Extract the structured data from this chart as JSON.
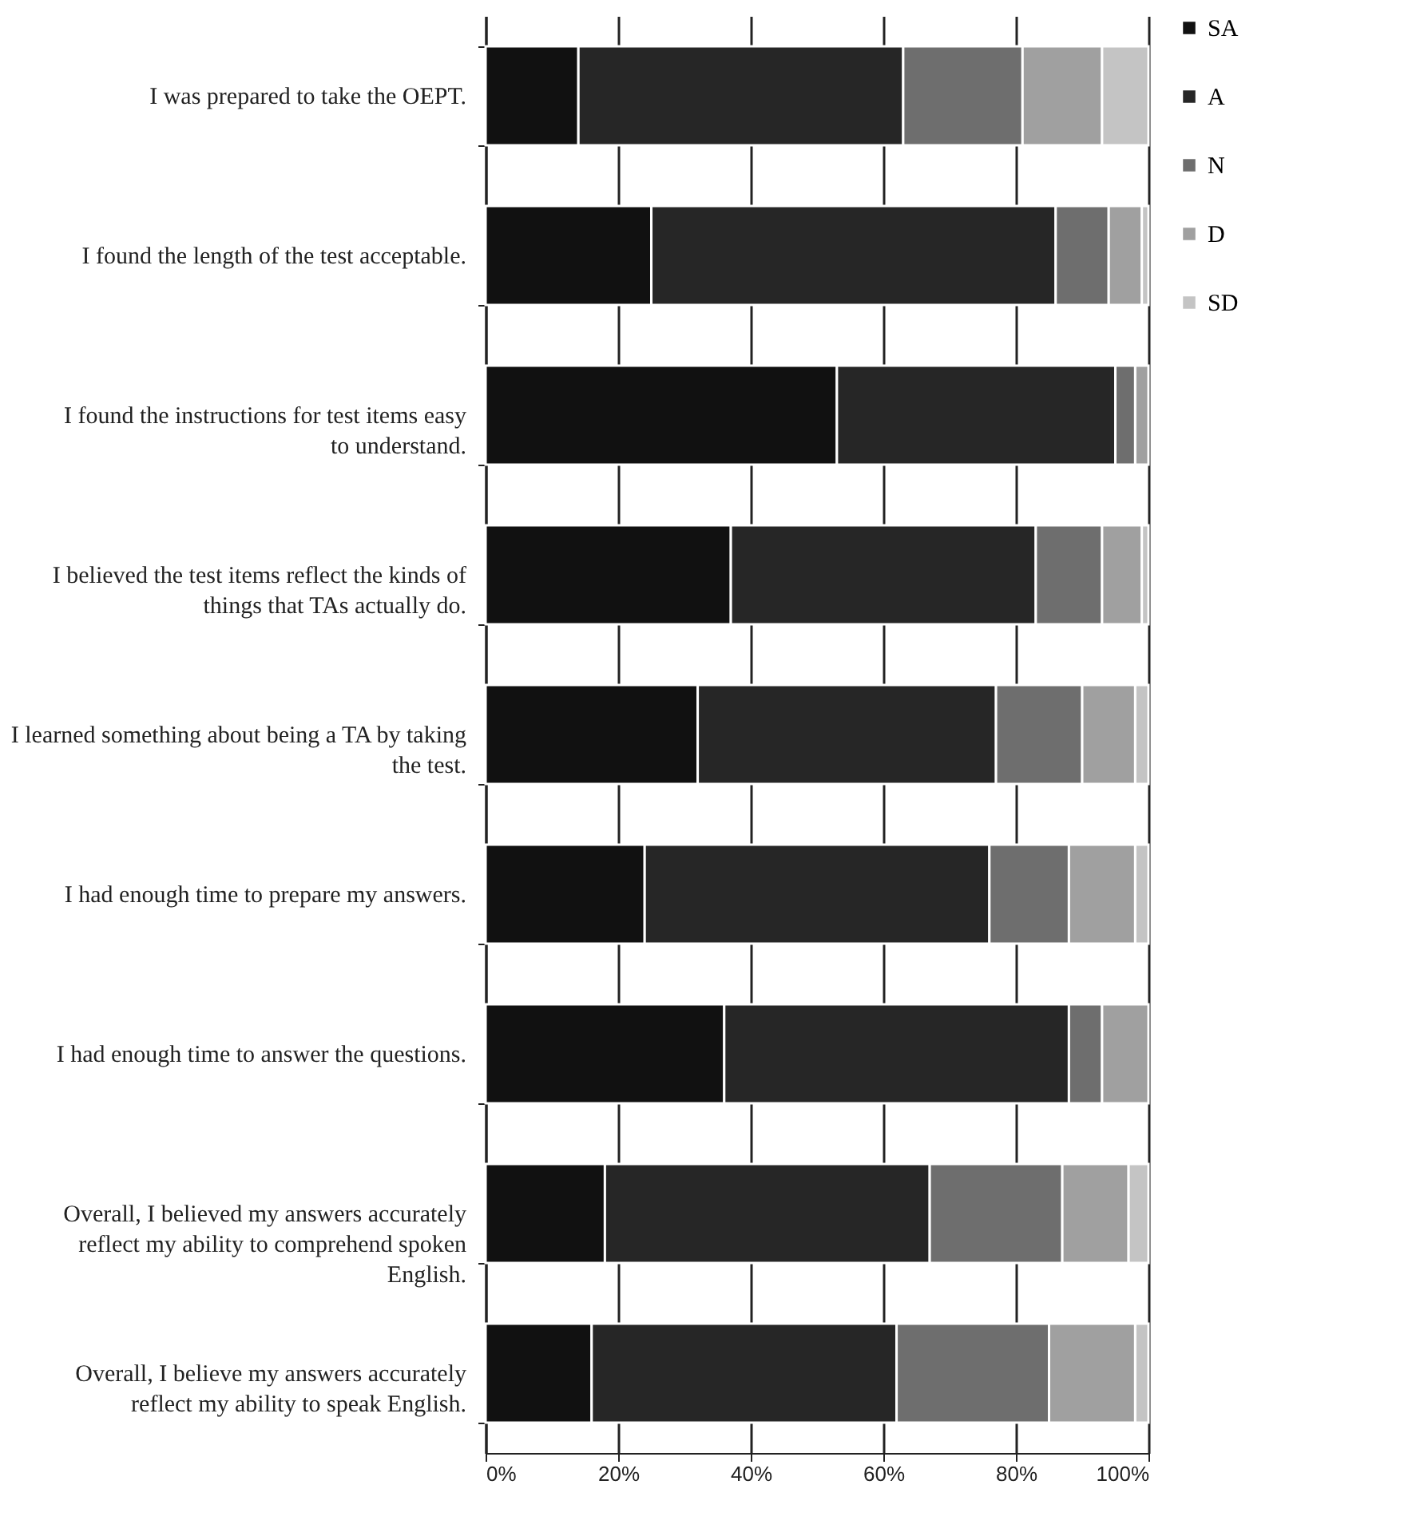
{
  "chart_data": {
    "type": "bar",
    "orientation": "horizontal",
    "stacked": true,
    "categories": [
      "I was prepared to take the OEPT.",
      "I found the length of the test acceptable.",
      "I found the instructions for test items easy to understand.",
      "I believed the test items reflect the kinds of things that TAs actually do.",
      "I learned something about being a TA by taking the test.",
      "I had enough time to prepare my answers.",
      "I had enough time to answer the questions.",
      "Overall, I believed my answers accurately reflect my ability to comprehend spoken English.",
      "Overall, I believe my answers accurately reflect my ability to speak English."
    ],
    "series": [
      {
        "name": "SA",
        "color": "#111111",
        "values": [
          14,
          25,
          53,
          37,
          32,
          24,
          36,
          18,
          16
        ]
      },
      {
        "name": "A",
        "color": "#262626",
        "values": [
          49,
          61,
          42,
          46,
          45,
          52,
          52,
          49,
          46
        ]
      },
      {
        "name": "N",
        "color": "#6e6e6e",
        "values": [
          18,
          8,
          3,
          10,
          13,
          12,
          5,
          20,
          23
        ]
      },
      {
        "name": "D",
        "color": "#a0a0a0",
        "values": [
          12,
          5,
          2,
          6,
          8,
          10,
          7,
          10,
          13
        ]
      },
      {
        "name": "SD",
        "color": "#c4c4c4",
        "values": [
          7,
          1,
          null,
          1,
          2,
          2,
          null,
          3,
          2
        ]
      }
    ],
    "xlim": [
      0,
      100
    ],
    "xticks": [
      {
        "value": 0,
        "label": "0%"
      },
      {
        "value": 20,
        "label": "20%"
      },
      {
        "value": 40,
        "label": "40%"
      },
      {
        "value": 60,
        "label": "60%"
      },
      {
        "value": 80,
        "label": "80%"
      },
      {
        "value": 100,
        "label": "100%"
      }
    ],
    "grid": "x",
    "legend": "right"
  }
}
